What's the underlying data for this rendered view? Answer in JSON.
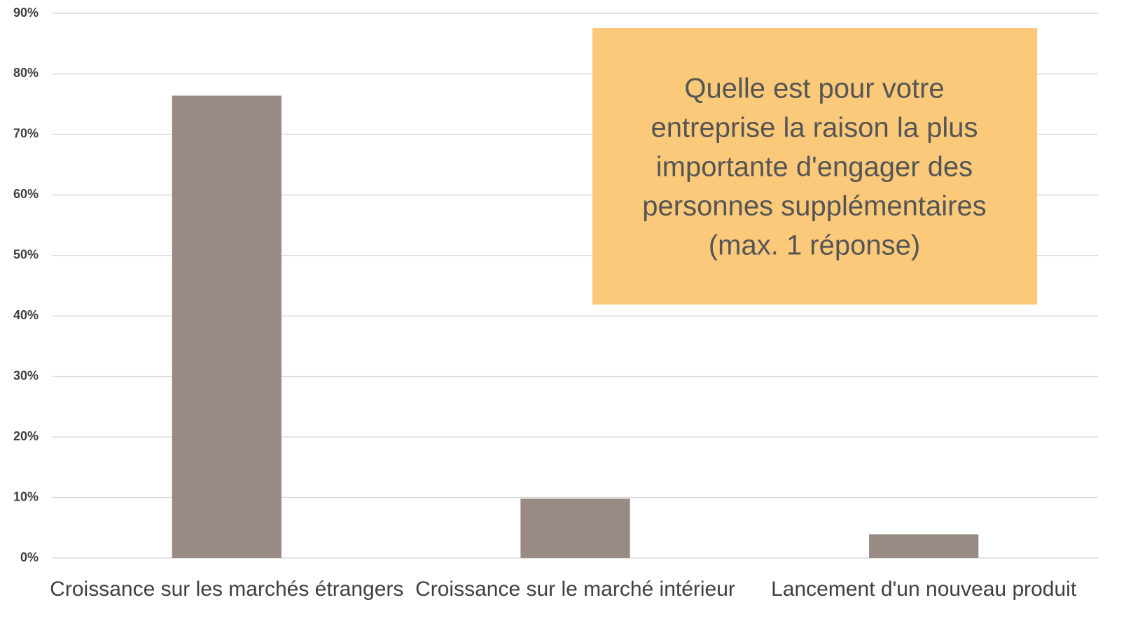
{
  "chart_data": {
    "type": "bar",
    "categories": [
      "Croissance sur les marchés étrangers",
      "Croissance sur le marché intérieur",
      "Lancement d'un nouveau produit"
    ],
    "values": [
      76.4,
      9.8,
      3.9
    ],
    "color": "#998a85",
    "ylim": [
      0,
      90
    ],
    "yticks": [
      {
        "value": 0,
        "label": "0%"
      },
      {
        "value": 10,
        "label": "10%"
      },
      {
        "value": 20,
        "label": "20%"
      },
      {
        "value": 30,
        "label": "30%"
      },
      {
        "value": 40,
        "label": "40%"
      },
      {
        "value": 50,
        "label": "50%"
      },
      {
        "value": 60,
        "label": "60%"
      },
      {
        "value": 70,
        "label": "70%"
      },
      {
        "value": 80,
        "label": "80%"
      },
      {
        "value": 90,
        "label": "90%"
      }
    ],
    "grid": true,
    "annotation": [
      "Quelle est pour votre",
      "entreprise la raison la plus",
      "importante d'engager des",
      "personnes supplémentaires",
      "(max. 1 réponse)"
    ],
    "annotation_color": "#fbc97a"
  }
}
